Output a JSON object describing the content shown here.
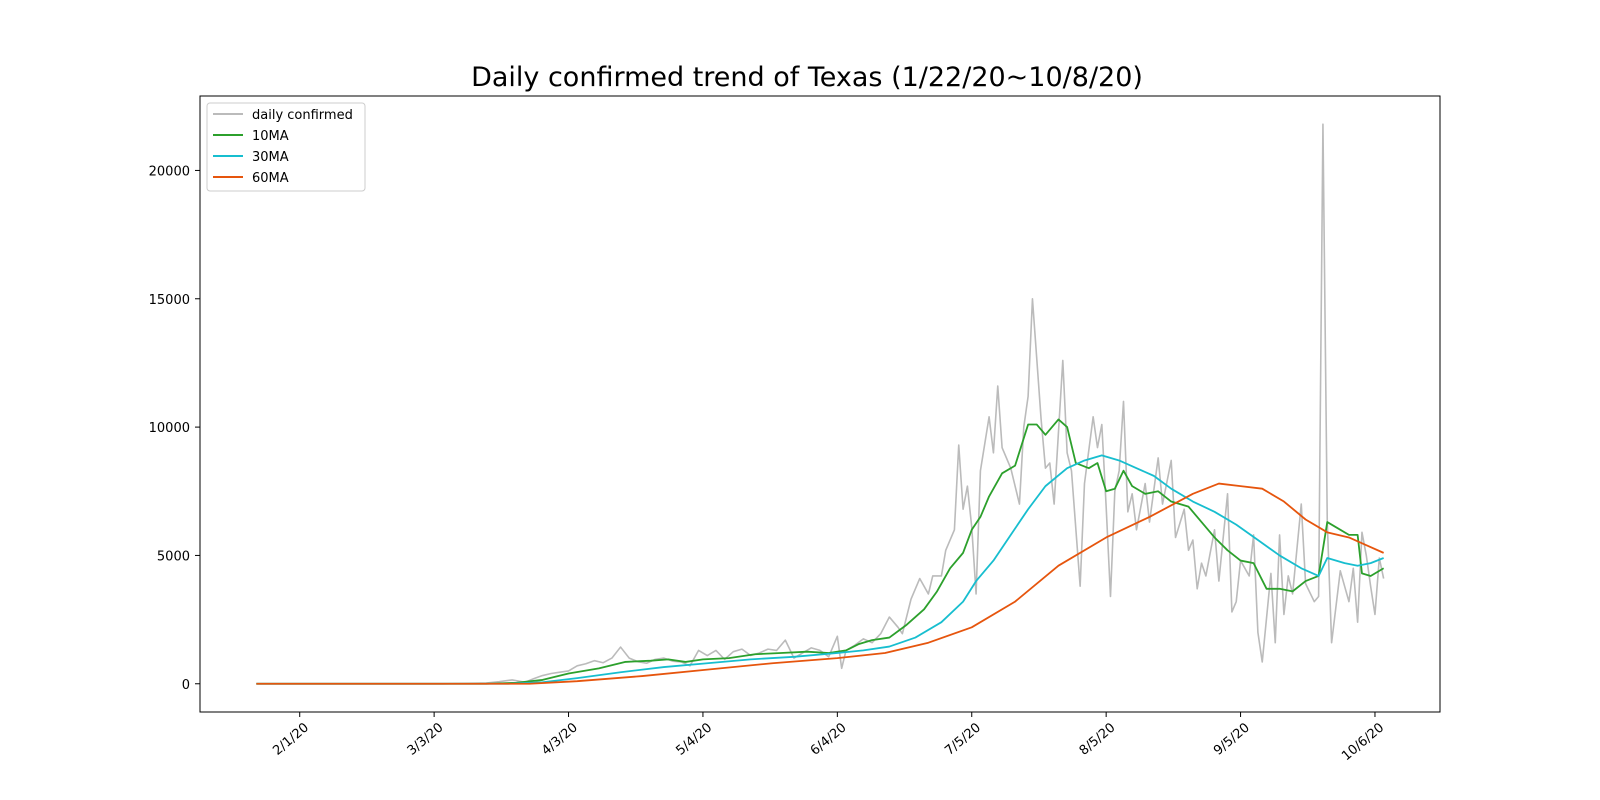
{
  "chart_data": {
    "type": "line",
    "title": "Daily confirmed trend of Texas (1/22/20~10/8/20)",
    "xlabel": "",
    "ylabel": "",
    "x_range": [
      "1/22/20",
      "10/8/20"
    ],
    "x_ticks": [
      "2/1/20",
      "3/3/20",
      "4/3/20",
      "5/4/20",
      "6/4/20",
      "7/5/20",
      "8/5/20",
      "9/5/20",
      "10/6/20"
    ],
    "y_ticks": [
      0,
      5000,
      10000,
      15000,
      20000
    ],
    "ylim": [
      -1100,
      22900
    ],
    "grid": false,
    "legend_position": "top-left",
    "series": [
      {
        "name": "daily confirmed",
        "color": "#bbbbbb",
        "points": [
          [
            "1/22/20",
            0
          ],
          [
            "3/5/20",
            0
          ],
          [
            "3/10/20",
            10
          ],
          [
            "3/15/20",
            30
          ],
          [
            "3/18/20",
            80
          ],
          [
            "3/21/20",
            150
          ],
          [
            "3/24/20",
            60
          ],
          [
            "3/26/20",
            200
          ],
          [
            "3/28/20",
            320
          ],
          [
            "3/30/20",
            400
          ],
          [
            "4/1/20",
            450
          ],
          [
            "4/3/20",
            500
          ],
          [
            "4/5/20",
            700
          ],
          [
            "4/7/20",
            780
          ],
          [
            "4/9/20",
            900
          ],
          [
            "4/11/20",
            820
          ],
          [
            "4/13/20",
            1000
          ],
          [
            "4/15/20",
            1430
          ],
          [
            "4/17/20",
            1000
          ],
          [
            "4/19/20",
            860
          ],
          [
            "4/21/20",
            800
          ],
          [
            "4/23/20",
            950
          ],
          [
            "4/25/20",
            1000
          ],
          [
            "4/27/20",
            880
          ],
          [
            "4/29/20",
            850
          ],
          [
            "5/1/20",
            700
          ],
          [
            "5/3/20",
            1300
          ],
          [
            "5/5/20",
            1100
          ],
          [
            "5/7/20",
            1300
          ],
          [
            "5/9/20",
            950
          ],
          [
            "5/11/20",
            1250
          ],
          [
            "5/13/20",
            1350
          ],
          [
            "5/15/20",
            1100
          ],
          [
            "5/17/20",
            1200
          ],
          [
            "5/19/20",
            1350
          ],
          [
            "5/21/20",
            1300
          ],
          [
            "5/23/20",
            1700
          ],
          [
            "5/25/20",
            1000
          ],
          [
            "5/27/20",
            1200
          ],
          [
            "5/29/20",
            1400
          ],
          [
            "5/31/20",
            1300
          ],
          [
            "6/2/20",
            1050
          ],
          [
            "6/4/20",
            1850
          ],
          [
            "6/5/20",
            600
          ],
          [
            "6/6/20",
            1300
          ],
          [
            "6/8/20",
            1500
          ],
          [
            "6/10/20",
            1750
          ],
          [
            "6/12/20",
            1600
          ],
          [
            "6/14/20",
            1950
          ],
          [
            "6/16/20",
            2600
          ],
          [
            "6/18/20",
            2200
          ],
          [
            "6/19/20",
            1950
          ],
          [
            "6/21/20",
            3300
          ],
          [
            "6/23/20",
            4100
          ],
          [
            "6/25/20",
            3500
          ],
          [
            "6/26/20",
            4200
          ],
          [
            "6/28/20",
            4200
          ],
          [
            "6/29/20",
            5200
          ],
          [
            "7/1/20",
            6000
          ],
          [
            "7/2/20",
            9300
          ],
          [
            "7/3/20",
            6800
          ],
          [
            "7/4/20",
            7700
          ],
          [
            "7/5/20",
            6100
          ],
          [
            "7/6/20",
            3500
          ],
          [
            "7/7/20",
            8300
          ],
          [
            "7/9/20",
            10400
          ],
          [
            "7/10/20",
            9000
          ],
          [
            "7/11/20",
            11600
          ],
          [
            "7/12/20",
            9200
          ],
          [
            "7/14/20",
            8400
          ],
          [
            "7/16/20",
            7000
          ],
          [
            "7/17/20",
            10000
          ],
          [
            "7/18/20",
            11200
          ],
          [
            "7/19/20",
            15000
          ],
          [
            "7/21/20",
            10300
          ],
          [
            "7/22/20",
            8400
          ],
          [
            "7/23/20",
            8600
          ],
          [
            "7/24/20",
            7000
          ],
          [
            "7/26/20",
            12600
          ],
          [
            "7/27/20",
            9000
          ],
          [
            "7/28/20",
            8300
          ],
          [
            "7/30/20",
            3800
          ],
          [
            "7/31/20",
            7800
          ],
          [
            "8/2/20",
            10400
          ],
          [
            "8/3/20",
            9200
          ],
          [
            "8/4/20",
            10100
          ],
          [
            "8/5/20",
            6900
          ],
          [
            "8/6/20",
            3400
          ],
          [
            "8/7/20",
            7500
          ],
          [
            "8/8/20",
            8300
          ],
          [
            "8/9/20",
            11000
          ],
          [
            "8/10/20",
            6700
          ],
          [
            "8/11/20",
            7400
          ],
          [
            "8/12/20",
            6000
          ],
          [
            "8/14/20",
            7800
          ],
          [
            "8/15/20",
            6300
          ],
          [
            "8/17/20",
            8800
          ],
          [
            "8/18/20",
            7000
          ],
          [
            "8/20/20",
            8700
          ],
          [
            "8/21/20",
            5700
          ],
          [
            "8/23/20",
            6800
          ],
          [
            "8/24/20",
            5200
          ],
          [
            "8/25/20",
            5600
          ],
          [
            "8/26/20",
            3700
          ],
          [
            "8/27/20",
            4700
          ],
          [
            "8/28/20",
            4200
          ],
          [
            "8/30/20",
            6000
          ],
          [
            "8/31/20",
            4000
          ],
          [
            "9/2/20",
            7400
          ],
          [
            "9/3/20",
            2800
          ],
          [
            "9/4/20",
            3200
          ],
          [
            "9/5/20",
            4800
          ],
          [
            "9/7/20",
            4200
          ],
          [
            "9/8/20",
            5800
          ],
          [
            "9/9/20",
            2000
          ],
          [
            "9/10/20",
            850
          ],
          [
            "9/12/20",
            4300
          ],
          [
            "9/13/20",
            1600
          ],
          [
            "9/14/20",
            5800
          ],
          [
            "9/15/20",
            2700
          ],
          [
            "9/16/20",
            4200
          ],
          [
            "9/17/20",
            3500
          ],
          [
            "9/19/20",
            7000
          ],
          [
            "9/20/20",
            3900
          ],
          [
            "9/22/20",
            3200
          ],
          [
            "9/23/20",
            3400
          ],
          [
            "9/24/20",
            21800
          ],
          [
            "9/25/20",
            6300
          ],
          [
            "9/26/20",
            1600
          ],
          [
            "9/28/20",
            4400
          ],
          [
            "9/30/20",
            3200
          ],
          [
            "10/1/20",
            4500
          ],
          [
            "10/2/20",
            2400
          ],
          [
            "10/3/20",
            5900
          ],
          [
            "10/4/20",
            5000
          ],
          [
            "10/5/20",
            3800
          ],
          [
            "10/6/20",
            2700
          ],
          [
            "10/7/20",
            4900
          ],
          [
            "10/8/20",
            4100
          ]
        ]
      },
      {
        "name": "10MA",
        "color": "#2ca02c",
        "points": [
          [
            "1/22/20",
            0
          ],
          [
            "3/15/20",
            0
          ],
          [
            "3/22/20",
            40
          ],
          [
            "3/28/20",
            150
          ],
          [
            "4/3/20",
            400
          ],
          [
            "4/10/20",
            600
          ],
          [
            "4/16/20",
            850
          ],
          [
            "4/22/20",
            900
          ],
          [
            "4/26/20",
            950
          ],
          [
            "4/30/20",
            850
          ],
          [
            "5/4/20",
            950
          ],
          [
            "5/10/20",
            1000
          ],
          [
            "5/16/20",
            1150
          ],
          [
            "5/22/20",
            1200
          ],
          [
            "5/28/20",
            1250
          ],
          [
            "6/2/20",
            1200
          ],
          [
            "6/6/20",
            1300
          ],
          [
            "6/9/20",
            1550
          ],
          [
            "6/12/20",
            1700
          ],
          [
            "6/16/20",
            1800
          ],
          [
            "6/20/20",
            2300
          ],
          [
            "6/24/20",
            2900
          ],
          [
            "6/27/20",
            3600
          ],
          [
            "6/30/20",
            4500
          ],
          [
            "7/3/20",
            5100
          ],
          [
            "7/5/20",
            6000
          ],
          [
            "7/7/20",
            6500
          ],
          [
            "7/9/20",
            7300
          ],
          [
            "7/12/20",
            8200
          ],
          [
            "7/15/20",
            8500
          ],
          [
            "7/18/20",
            10100
          ],
          [
            "7/20/20",
            10100
          ],
          [
            "7/22/20",
            9700
          ],
          [
            "7/25/20",
            10300
          ],
          [
            "7/27/20",
            10000
          ],
          [
            "7/29/20",
            8600
          ],
          [
            "8/1/20",
            8400
          ],
          [
            "8/3/20",
            8600
          ],
          [
            "8/5/20",
            7500
          ],
          [
            "8/7/20",
            7600
          ],
          [
            "8/9/20",
            8300
          ],
          [
            "8/11/20",
            7700
          ],
          [
            "8/14/20",
            7400
          ],
          [
            "8/17/20",
            7500
          ],
          [
            "8/20/20",
            7100
          ],
          [
            "8/24/20",
            6900
          ],
          [
            "8/27/20",
            6300
          ],
          [
            "8/30/20",
            5700
          ],
          [
            "9/2/20",
            5200
          ],
          [
            "9/5/20",
            4800
          ],
          [
            "9/8/20",
            4700
          ],
          [
            "9/11/20",
            3700
          ],
          [
            "9/14/20",
            3700
          ],
          [
            "9/17/20",
            3600
          ],
          [
            "9/20/20",
            4000
          ],
          [
            "9/23/20",
            4200
          ],
          [
            "9/25/20",
            6300
          ],
          [
            "9/27/20",
            6100
          ],
          [
            "9/30/20",
            5800
          ],
          [
            "10/2/20",
            5800
          ],
          [
            "10/3/20",
            4300
          ],
          [
            "10/5/20",
            4200
          ],
          [
            "10/8/20",
            4500
          ]
        ]
      },
      {
        "name": "30MA",
        "color": "#17becf",
        "points": [
          [
            "1/22/20",
            0
          ],
          [
            "3/20/20",
            0
          ],
          [
            "3/28/20",
            60
          ],
          [
            "4/5/20",
            220
          ],
          [
            "4/15/20",
            450
          ],
          [
            "4/25/20",
            650
          ],
          [
            "5/5/20",
            800
          ],
          [
            "5/15/20",
            950
          ],
          [
            "5/25/20",
            1050
          ],
          [
            "6/4/20",
            1200
          ],
          [
            "6/10/20",
            1300
          ],
          [
            "6/16/20",
            1450
          ],
          [
            "6/22/20",
            1800
          ],
          [
            "6/28/20",
            2400
          ],
          [
            "7/3/20",
            3200
          ],
          [
            "7/6/20",
            4000
          ],
          [
            "7/10/20",
            4800
          ],
          [
            "7/14/20",
            5800
          ],
          [
            "7/18/20",
            6800
          ],
          [
            "7/22/20",
            7700
          ],
          [
            "7/27/20",
            8400
          ],
          [
            "7/31/20",
            8700
          ],
          [
            "8/4/20",
            8900
          ],
          [
            "8/8/20",
            8700
          ],
          [
            "8/12/20",
            8400
          ],
          [
            "8/16/20",
            8100
          ],
          [
            "8/20/20",
            7600
          ],
          [
            "8/25/20",
            7100
          ],
          [
            "8/30/20",
            6700
          ],
          [
            "9/4/20",
            6200
          ],
          [
            "9/9/20",
            5600
          ],
          [
            "9/14/20",
            5000
          ],
          [
            "9/19/20",
            4500
          ],
          [
            "9/23/20",
            4200
          ],
          [
            "9/25/20",
            4900
          ],
          [
            "9/29/20",
            4700
          ],
          [
            "10/2/20",
            4600
          ],
          [
            "10/5/20",
            4700
          ],
          [
            "10/8/20",
            4900
          ]
        ]
      },
      {
        "name": "60MA",
        "color": "#e6550d",
        "points": [
          [
            "1/22/20",
            0
          ],
          [
            "3/25/20",
            0
          ],
          [
            "4/5/20",
            100
          ],
          [
            "4/20/20",
            300
          ],
          [
            "5/5/20",
            550
          ],
          [
            "5/20/20",
            800
          ],
          [
            "6/4/20",
            1000
          ],
          [
            "6/15/20",
            1200
          ],
          [
            "6/25/20",
            1600
          ],
          [
            "7/5/20",
            2200
          ],
          [
            "7/15/20",
            3200
          ],
          [
            "7/25/20",
            4600
          ],
          [
            "8/5/20",
            5700
          ],
          [
            "8/15/20",
            6500
          ],
          [
            "8/25/20",
            7400
          ],
          [
            "8/31/20",
            7800
          ],
          [
            "9/5/20",
            7700
          ],
          [
            "9/10/20",
            7600
          ],
          [
            "9/15/20",
            7100
          ],
          [
            "9/20/20",
            6400
          ],
          [
            "9/25/20",
            5900
          ],
          [
            "9/30/20",
            5700
          ],
          [
            "10/4/20",
            5400
          ],
          [
            "10/8/20",
            5100
          ]
        ]
      }
    ]
  }
}
